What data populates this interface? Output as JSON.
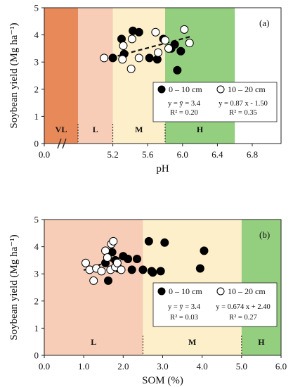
{
  "chart_data": [
    {
      "type": "scatter",
      "panel_label": "(a)",
      "xlabel": "pH",
      "ylabel": "Soybean yield (Mg ha⁻¹)",
      "xlim": [
        4.8,
        6.8
      ],
      "ylim": [
        0,
        5
      ],
      "x_ticks": [
        "0.0",
        "5.2",
        "5.6",
        "6.0",
        "6.4",
        "6.8"
      ],
      "y_ticks": [
        "0",
        "1",
        "2",
        "3",
        "4",
        "5"
      ],
      "axis_break": true,
      "zones": [
        {
          "label": "VL",
          "from": 4.8,
          "to": 5.0,
          "color": "#e8895a"
        },
        {
          "label": "L",
          "from": 5.0,
          "to": 5.4,
          "color": "#f7cdb8"
        },
        {
          "label": "M",
          "from": 5.4,
          "to": 6.0,
          "color": "#fdefc9"
        },
        {
          "label": "H",
          "from": 6.0,
          "to": 6.8,
          "color": "#93cf7f"
        }
      ],
      "series": [
        {
          "name": "0 – 10 cm",
          "marker": "filled",
          "x": [
            5.4,
            5.5,
            5.53,
            5.63,
            5.7,
            5.82,
            5.91,
            5.98,
            6.07,
            6.18,
            6.11,
            6.14
          ],
          "y": [
            3.15,
            3.85,
            3.3,
            4.15,
            4.1,
            3.15,
            3.1,
            3.85,
            3.5,
            3.4,
            3.65,
            2.7
          ]
        },
        {
          "name": "10 – 20 cm",
          "marker": "open",
          "x": [
            5.3,
            5.52,
            5.51,
            5.62,
            5.61,
            5.89,
            5.92,
            6.0,
            6.04,
            6.22,
            6.28,
            5.7
          ],
          "y": [
            3.15,
            3.6,
            3.1,
            3.85,
            2.75,
            4.1,
            3.35,
            3.8,
            3.5,
            4.2,
            3.7,
            3.15
          ]
        }
      ],
      "trendline": {
        "series": "10 – 20 cm",
        "x": [
          5.3,
          6.3
        ]
      },
      "equations": [
        {
          "line1": "y = ȳ = 3.4",
          "line2": "R² = 0.20"
        },
        {
          "line1": "y = 0.87 x - 1.50",
          "line2": "R² = 0.35"
        }
      ]
    },
    {
      "type": "scatter",
      "panel_label": "(b)",
      "xlabel": "SOM (%)",
      "ylabel": "Soybean yield (Mg ha⁻¹)",
      "xlim": [
        0,
        6
      ],
      "ylim": [
        0,
        5
      ],
      "x_ticks": [
        "0.0",
        "1.0",
        "2.0",
        "3.0",
        "4.0",
        "5.0",
        "6.0"
      ],
      "y_ticks": [
        "0",
        "1",
        "2",
        "3",
        "4",
        "5"
      ],
      "zones": [
        {
          "label": "L",
          "from": 0,
          "to": 2.5,
          "color": "#f7cdb8"
        },
        {
          "label": "M",
          "from": 2.5,
          "to": 5.0,
          "color": "#fdefc9"
        },
        {
          "label": "H",
          "from": 5.0,
          "to": 6.0,
          "color": "#93cf7f"
        }
      ],
      "series": [
        {
          "name": "0 – 10 cm",
          "marker": "filled",
          "x": [
            1.55,
            1.62,
            1.72,
            1.8,
            1.88,
            2.0,
            2.12,
            2.22,
            2.35,
            2.5,
            2.65,
            2.72,
            2.75,
            2.95,
            3.05,
            3.95,
            4.05
          ],
          "y": [
            3.4,
            2.75,
            3.8,
            3.5,
            3.2,
            3.65,
            3.55,
            3.15,
            3.55,
            3.15,
            4.2,
            3.1,
            3.05,
            3.1,
            4.15,
            3.2,
            3.85
          ]
        },
        {
          "name": "10 – 20 cm",
          "marker": "open",
          "x": [
            1.05,
            1.15,
            1.25,
            1.32,
            1.45,
            1.55,
            1.6,
            1.68,
            1.7,
            1.75,
            1.8,
            1.85,
            1.95
          ],
          "y": [
            3.4,
            3.15,
            2.75,
            3.2,
            3.1,
            3.85,
            3.6,
            3.15,
            4.1,
            4.2,
            3.25,
            3.4,
            3.15
          ]
        }
      ],
      "trendline": {
        "series": "10 – 20 cm",
        "x": [
          1.0,
          2.0
        ]
      },
      "equations": [
        {
          "line1": "y = ȳ = 3.4",
          "line2": "R² = 0.03"
        },
        {
          "line1": "y = 0.674 x + 2.40",
          "line2": "R² = 0.27"
        }
      ]
    }
  ]
}
